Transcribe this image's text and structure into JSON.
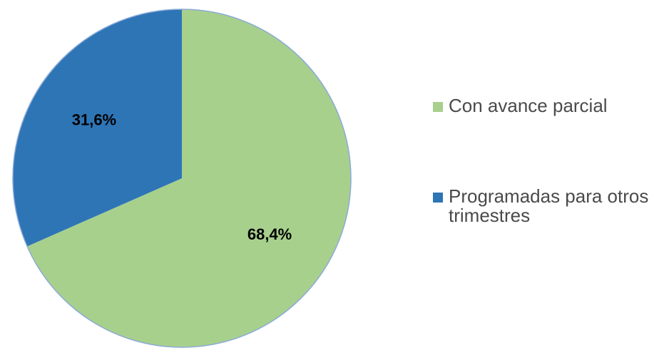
{
  "chart_data": {
    "type": "pie",
    "slices": [
      {
        "label": "Con avance parcial",
        "value": 68.4,
        "value_label": "68,4%",
        "color": "#a8d08d"
      },
      {
        "label": "Programadas para otros trimestres",
        "value": 31.6,
        "value_label": "31,6%",
        "color": "#2e75b6"
      }
    ],
    "legend_position": "right"
  }
}
